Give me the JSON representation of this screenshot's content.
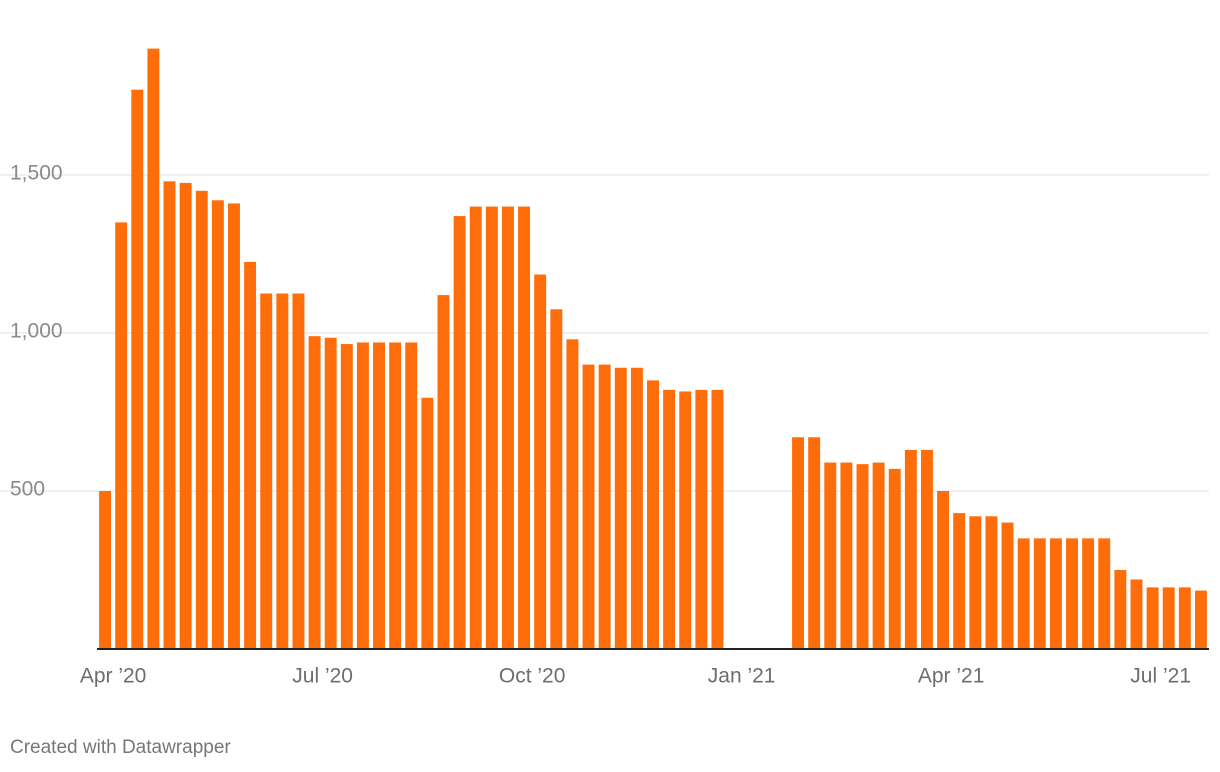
{
  "chart_data": {
    "type": "bar",
    "color": "#ff6c0a",
    "grid": true,
    "credit": "Created with Datawrapper",
    "categories": [
      "Apr ’20",
      null,
      null,
      null,
      null,
      null,
      null,
      null,
      null,
      null,
      null,
      null,
      null,
      "Jul ’20",
      null,
      null,
      null,
      null,
      null,
      null,
      null,
      null,
      null,
      null,
      null,
      null,
      "Oct ’20",
      null,
      null,
      null,
      null,
      null,
      null,
      null,
      null,
      null,
      null,
      null,
      null,
      "Jan ’21",
      null,
      null,
      null,
      null,
      null,
      null,
      null,
      null,
      null,
      null,
      null,
      null,
      "Apr ’21",
      null,
      null,
      null,
      null,
      null,
      null,
      null,
      null,
      null,
      null,
      null,
      null,
      "Jul ’21",
      null,
      null,
      null
    ],
    "values": [
      500,
      1350,
      1770,
      1900,
      1480,
      1475,
      1450,
      1420,
      1410,
      1225,
      1125,
      1125,
      1125,
      990,
      985,
      965,
      970,
      970,
      970,
      970,
      795,
      1120,
      1370,
      1400,
      1400,
      1400,
      1400,
      1185,
      1075,
      980,
      900,
      900,
      890,
      890,
      850,
      820,
      815,
      820,
      820,
      null,
      null,
      null,
      null,
      670,
      670,
      590,
      590,
      585,
      590,
      570,
      630,
      630,
      500,
      430,
      420,
      420,
      400,
      350,
      350,
      350,
      350,
      350,
      350,
      250,
      220,
      195,
      195,
      195,
      185
    ],
    "ylim": [
      0,
      2000
    ],
    "yticks": [
      {
        "value": 500,
        "label": "500"
      },
      {
        "value": 1000,
        "label": "1,000"
      },
      {
        "value": 1500,
        "label": "1,500"
      }
    ]
  }
}
